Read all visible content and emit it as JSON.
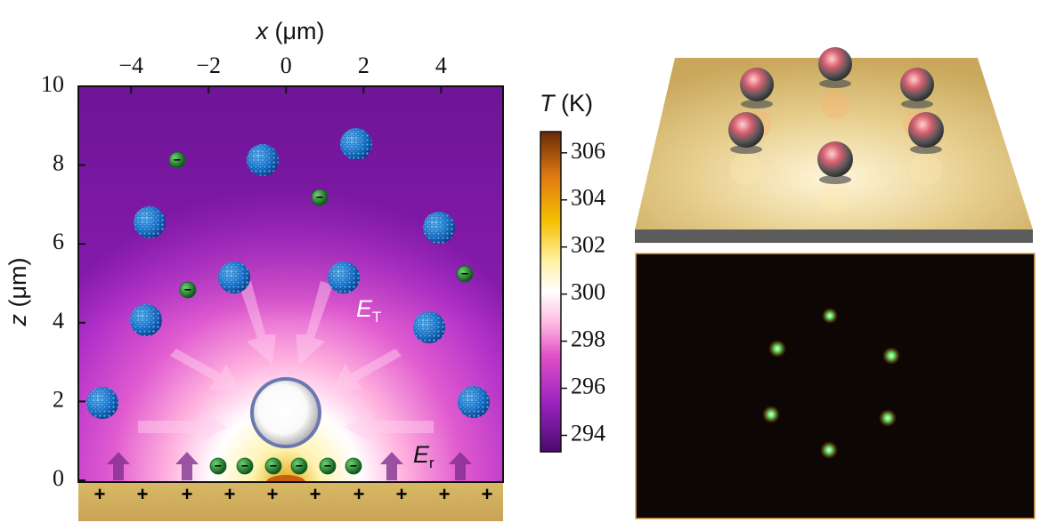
{
  "chart_data": {
    "type": "heatmap",
    "x_symbol": "x",
    "x_unit": "(μm)",
    "y_symbol": "z",
    "y_unit": "(μm)",
    "xlim": [
      -5.36,
      5.6
    ],
    "xticks": [
      {
        "value": -4,
        "label": "−4"
      },
      {
        "value": -2,
        "label": "−2"
      },
      0,
      2,
      4
    ],
    "ylim": [
      0,
      10
    ],
    "yticks": [
      0,
      2,
      4,
      6,
      8,
      10
    ],
    "colorbar": {
      "symbol": "T",
      "unit": "(K)",
      "lim": [
        293.3,
        306.9
      ],
      "ticks": [
        294,
        296,
        298,
        300,
        302,
        304,
        306
      ]
    },
    "annotations": {
      "thermal_field": {
        "symbol": "E",
        "subscript": "T"
      },
      "reflected_field": {
        "symbol": "E",
        "subscript": "r"
      }
    },
    "substrate_charge": "+",
    "particle_charge": "−"
  }
}
